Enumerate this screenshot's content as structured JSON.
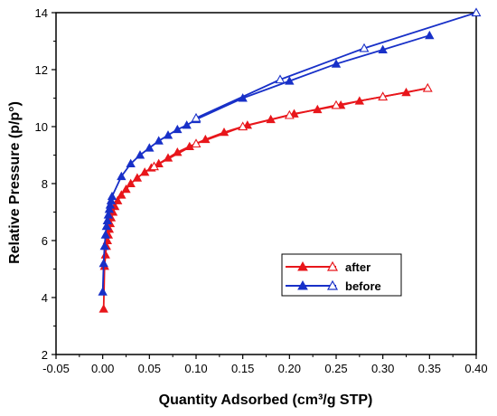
{
  "chart_data": {
    "type": "line",
    "xlabel": "Quantity Adsorbed (cm³/g STP)",
    "ylabel": "Relative Pressure (p/p°)",
    "xlim": [
      -0.05,
      0.4
    ],
    "ylim": [
      2,
      14
    ],
    "x_ticks": [
      "-0.05",
      "0.00",
      "0.05",
      "0.10",
      "0.15",
      "0.20",
      "0.25",
      "0.30",
      "0.35",
      "0.40"
    ],
    "y_ticks": [
      "2",
      "4",
      "6",
      "8",
      "10",
      "12",
      "14"
    ],
    "legend": {
      "position": "bottom-center"
    },
    "grid": false,
    "series": [
      {
        "name": "after",
        "color": "#e8161b",
        "adsorption": [
          [
            0.001,
            3.6
          ],
          [
            0.002,
            5.1
          ],
          [
            0.003,
            5.5
          ],
          [
            0.004,
            5.8
          ],
          [
            0.005,
            6.0
          ],
          [
            0.006,
            6.2
          ],
          [
            0.007,
            6.4
          ],
          [
            0.008,
            6.6
          ],
          [
            0.009,
            6.8
          ],
          [
            0.011,
            7.0
          ],
          [
            0.013,
            7.2
          ],
          [
            0.016,
            7.4
          ],
          [
            0.02,
            7.6
          ],
          [
            0.025,
            7.8
          ],
          [
            0.03,
            8.0
          ],
          [
            0.037,
            8.2
          ],
          [
            0.045,
            8.4
          ],
          [
            0.052,
            8.55
          ],
          [
            0.06,
            8.7
          ],
          [
            0.07,
            8.9
          ],
          [
            0.08,
            9.1
          ],
          [
            0.093,
            9.3
          ],
          [
            0.11,
            9.55
          ],
          [
            0.13,
            9.8
          ],
          [
            0.155,
            10.05
          ],
          [
            0.18,
            10.25
          ],
          [
            0.205,
            10.45
          ],
          [
            0.23,
            10.6
          ],
          [
            0.255,
            10.75
          ],
          [
            0.275,
            10.9
          ],
          [
            0.3,
            11.05
          ],
          [
            0.325,
            11.2
          ],
          [
            0.348,
            11.35
          ]
        ],
        "desorption": [
          [
            0.348,
            11.35
          ],
          [
            0.3,
            11.05
          ],
          [
            0.25,
            10.75
          ],
          [
            0.2,
            10.4
          ],
          [
            0.15,
            10.0
          ],
          [
            0.1,
            9.4
          ],
          [
            0.055,
            8.6
          ]
        ]
      },
      {
        "name": "before",
        "color": "#1830c8",
        "adsorption": [
          [
            0.0,
            4.2
          ],
          [
            0.001,
            5.2
          ],
          [
            0.002,
            5.8
          ],
          [
            0.003,
            6.2
          ],
          [
            0.004,
            6.5
          ],
          [
            0.005,
            6.7
          ],
          [
            0.006,
            6.9
          ],
          [
            0.007,
            7.1
          ],
          [
            0.008,
            7.25
          ],
          [
            0.009,
            7.4
          ],
          [
            0.01,
            7.55
          ],
          [
            0.02,
            8.25
          ],
          [
            0.03,
            8.7
          ],
          [
            0.04,
            9.0
          ],
          [
            0.05,
            9.25
          ],
          [
            0.06,
            9.5
          ],
          [
            0.07,
            9.7
          ],
          [
            0.08,
            9.9
          ],
          [
            0.09,
            10.05
          ],
          [
            0.1,
            10.25
          ],
          [
            0.15,
            11.0
          ],
          [
            0.2,
            11.6
          ],
          [
            0.25,
            12.2
          ],
          [
            0.3,
            12.7
          ],
          [
            0.35,
            13.2
          ]
        ],
        "desorption": [
          [
            0.4,
            14.0
          ],
          [
            0.28,
            12.75
          ],
          [
            0.19,
            11.65
          ],
          [
            0.1,
            10.3
          ]
        ]
      }
    ]
  }
}
